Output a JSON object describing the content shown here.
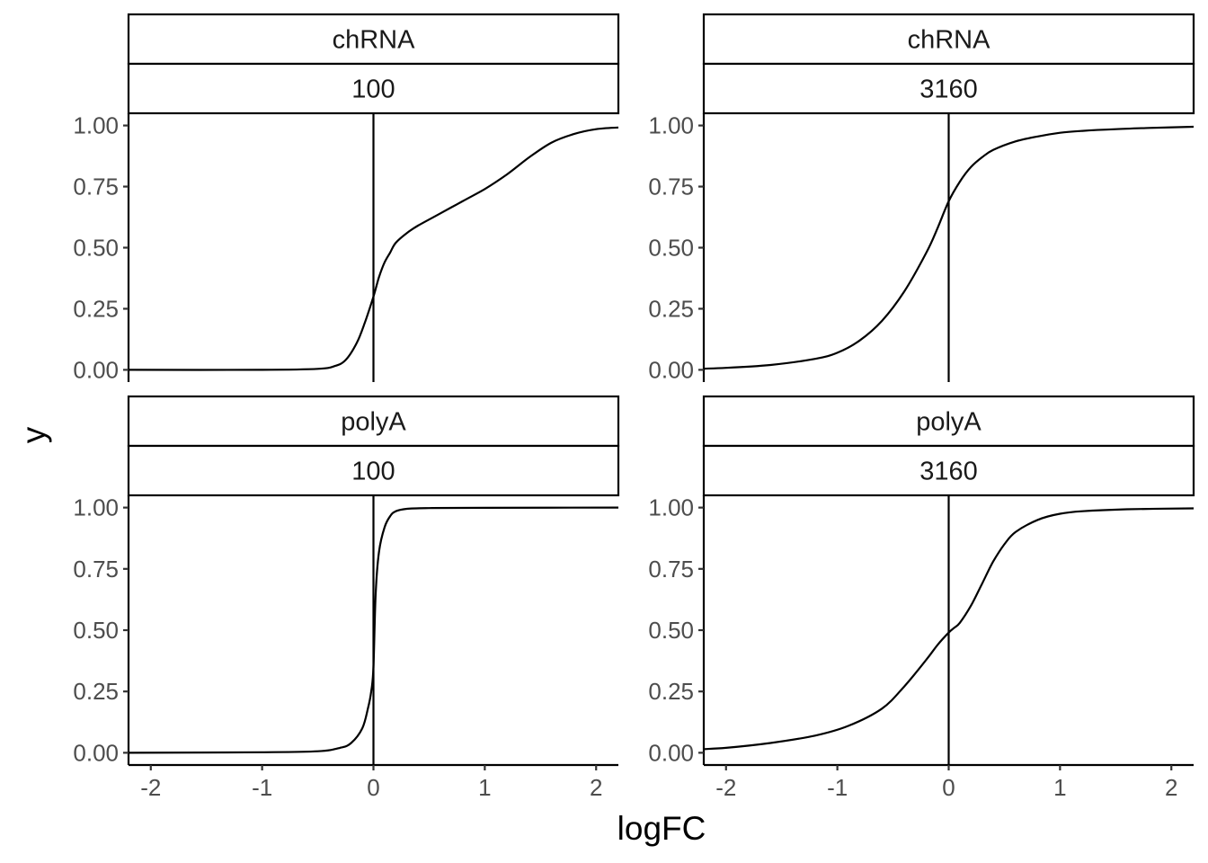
{
  "chart_data": {
    "type": "line",
    "xlabel": "logFC",
    "ylabel": "y",
    "xlim": [
      -2.2,
      2.2
    ],
    "ylim": [
      -0.05,
      1.05
    ],
    "x_ticks": [
      "-2",
      "-1",
      "0",
      "1",
      "2"
    ],
    "x_tick_values": [
      -2,
      -1,
      0,
      1,
      2
    ],
    "y_ticks": [
      "0.00",
      "0.25",
      "0.50",
      "0.75",
      "1.00"
    ],
    "y_tick_values": [
      0,
      0.25,
      0.5,
      0.75,
      1
    ],
    "reference_line_x": 0,
    "grid": false,
    "panels": [
      {
        "strip_top": "chRNA",
        "strip_bottom": "100",
        "x": [
          -2.2,
          -1.0,
          -0.5,
          -0.35,
          -0.25,
          -0.15,
          -0.08,
          0.0,
          0.05,
          0.1,
          0.15,
          0.2,
          0.3,
          0.4,
          0.6,
          0.8,
          1.0,
          1.2,
          1.4,
          1.6,
          1.8,
          2.0,
          2.2
        ],
        "y": [
          0.0,
          0.0,
          0.004,
          0.015,
          0.04,
          0.11,
          0.19,
          0.3,
          0.38,
          0.44,
          0.48,
          0.52,
          0.56,
          0.59,
          0.64,
          0.69,
          0.74,
          0.8,
          0.87,
          0.93,
          0.965,
          0.985,
          0.992
        ]
      },
      {
        "strip_top": "chRNA",
        "strip_bottom": "3160",
        "x": [
          -2.2,
          -2.0,
          -1.6,
          -1.2,
          -1.0,
          -0.8,
          -0.6,
          -0.4,
          -0.2,
          -0.1,
          0.0,
          0.1,
          0.2,
          0.3,
          0.4,
          0.6,
          0.8,
          1.0,
          1.2,
          1.5,
          1.8,
          2.2
        ],
        "y": [
          0.005,
          0.008,
          0.02,
          0.045,
          0.07,
          0.12,
          0.2,
          0.32,
          0.48,
          0.58,
          0.69,
          0.77,
          0.83,
          0.87,
          0.9,
          0.935,
          0.955,
          0.97,
          0.978,
          0.985,
          0.99,
          0.995
        ]
      },
      {
        "strip_top": "polyA",
        "strip_bottom": "100",
        "x": [
          -2.2,
          -1.0,
          -0.5,
          -0.3,
          -0.2,
          -0.1,
          -0.05,
          -0.02,
          0.0,
          0.02,
          0.05,
          0.1,
          0.15,
          0.2,
          0.3,
          0.5,
          1.0,
          2.2
        ],
        "y": [
          0.0,
          0.002,
          0.006,
          0.02,
          0.04,
          0.1,
          0.18,
          0.25,
          0.35,
          0.65,
          0.82,
          0.92,
          0.965,
          0.985,
          0.995,
          0.998,
          0.999,
          1.0
        ]
      },
      {
        "strip_top": "polyA",
        "strip_bottom": "3160",
        "x": [
          -2.2,
          -2.0,
          -1.6,
          -1.2,
          -0.9,
          -0.6,
          -0.4,
          -0.2,
          -0.1,
          0.0,
          0.05,
          0.1,
          0.2,
          0.3,
          0.4,
          0.5,
          0.6,
          0.8,
          1.0,
          1.2,
          1.6,
          2.2
        ],
        "y": [
          0.015,
          0.02,
          0.04,
          0.07,
          0.11,
          0.18,
          0.27,
          0.38,
          0.44,
          0.49,
          0.51,
          0.53,
          0.6,
          0.69,
          0.78,
          0.85,
          0.9,
          0.95,
          0.975,
          0.985,
          0.993,
          0.997
        ]
      }
    ]
  }
}
